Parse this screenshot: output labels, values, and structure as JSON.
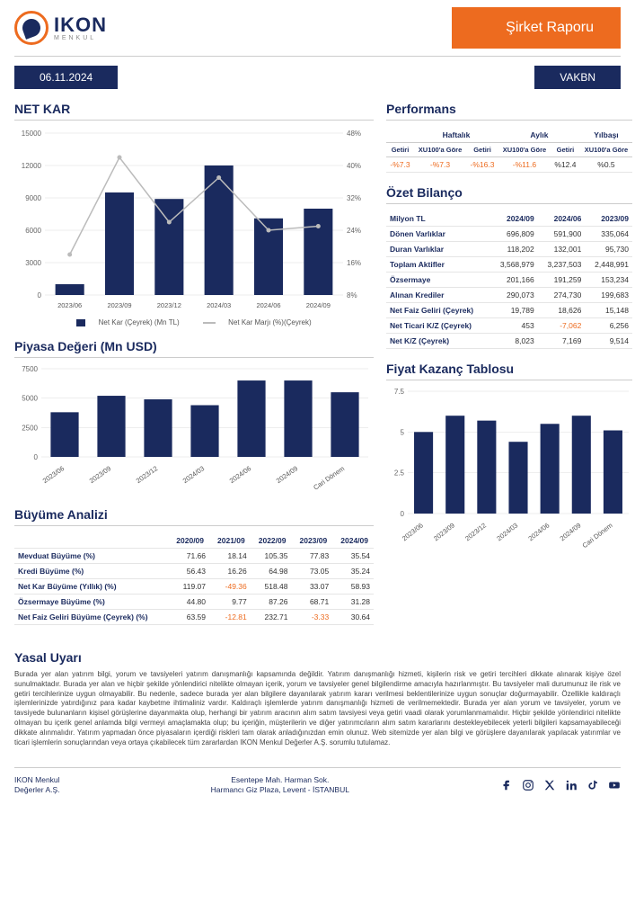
{
  "header": {
    "logo_main": "IKON",
    "logo_sub": "MENKUL",
    "banner": "Şirket Raporu"
  },
  "info": {
    "date": "06.11.2024",
    "ticker": "VAKBN"
  },
  "netkar": {
    "title": "NET KAR",
    "type": "bar+line",
    "categories": [
      "2023/06",
      "2023/09",
      "2023/12",
      "2024/03",
      "2024/06",
      "2024/09"
    ],
    "bar_values": [
      1000,
      9500,
      8900,
      12000,
      7100,
      8000
    ],
    "line_values": [
      18,
      42,
      26,
      37,
      24,
      25
    ],
    "y_left_max": 15000,
    "y_left_step": 3000,
    "y_right_max": 48,
    "y_right_min": 8,
    "y_right_step": 8,
    "bar_color": "#1a2a5e",
    "line_color": "#bbbbbb",
    "legend_bar": "Net Kar (Çeyrek) (Mn TL)",
    "legend_line": "Net Kar Marjı (%)(Çeyrek)"
  },
  "piyasa": {
    "title": "Piyasa Değeri (Mn USD)",
    "type": "bar",
    "categories": [
      "2023/06",
      "2023/09",
      "2023/12",
      "2024/03",
      "2024/06",
      "2024/09",
      "Cari Dönem"
    ],
    "values": [
      3800,
      5200,
      4900,
      4400,
      6500,
      6500,
      5500
    ],
    "ymax": 7500,
    "ystep": 2500,
    "bar_color": "#1a2a5e"
  },
  "buyume": {
    "title": "Büyüme Analizi",
    "columns": [
      "",
      "2020/09",
      "2021/09",
      "2022/09",
      "2023/09",
      "2024/09"
    ],
    "rows": [
      {
        "label": "Mevduat Büyüme (%)",
        "vals": [
          "71.66",
          "18.14",
          "105.35",
          "77.83",
          "35.54"
        ]
      },
      {
        "label": "Kredi Büyüme (%)",
        "vals": [
          "56.43",
          "16.26",
          "64.98",
          "73.05",
          "35.24"
        ]
      },
      {
        "label": "Net Kar Büyüme (Yıllık) (%)",
        "vals": [
          "119.07",
          "-49.36",
          "518.48",
          "33.07",
          "58.93"
        ]
      },
      {
        "label": "Özsermaye Büyüme (%)",
        "vals": [
          "44.80",
          "9.77",
          "87.26",
          "68.71",
          "31.28"
        ]
      },
      {
        "label": "Net Faiz Geliri Büyüme (Çeyrek) (%)",
        "vals": [
          "63.59",
          "-12.81",
          "232.71",
          "-3.33",
          "30.64"
        ]
      }
    ]
  },
  "performans": {
    "title": "Performans",
    "groups": [
      "Haftalık",
      "Aylık",
      "Yılbaşı"
    ],
    "sub_cols": [
      "Getiri",
      "XU100'a Göre"
    ],
    "row": [
      "-%7.3",
      "-%7.3",
      "-%16.3",
      "-%11.6",
      "%12.4",
      "%0.5"
    ]
  },
  "ozet": {
    "title": "Özet Bilanço",
    "columns": [
      "Milyon TL",
      "2024/09",
      "2024/06",
      "2023/09"
    ],
    "rows": [
      {
        "label": "Dönen Varlıklar",
        "vals": [
          "696,809",
          "591,900",
          "335,064"
        ]
      },
      {
        "label": "Duran Varlıklar",
        "vals": [
          "118,202",
          "132,001",
          "95,730"
        ]
      },
      {
        "label": "Toplam Aktifler",
        "vals": [
          "3,568,979",
          "3,237,503",
          "2,448,991"
        ]
      },
      {
        "label": "Özsermaye",
        "vals": [
          "201,166",
          "191,259",
          "153,234"
        ]
      },
      {
        "label": "Alınan Krediler",
        "vals": [
          "290,073",
          "274,730",
          "199,683"
        ]
      },
      {
        "label": "Net Faiz Geliri (Çeyrek)",
        "vals": [
          "19,789",
          "18,626",
          "15,148"
        ]
      },
      {
        "label": "Net Ticari K/Z (Çeyrek)",
        "vals": [
          "453",
          "-7,062",
          "6,256"
        ]
      },
      {
        "label": "Net K/Z (Çeyrek)",
        "vals": [
          "8,023",
          "7,169",
          "9,514"
        ]
      }
    ]
  },
  "fiyat": {
    "title": "Fiyat Kazanç Tablosu",
    "type": "bar",
    "categories": [
      "2023/06",
      "2023/09",
      "2023/12",
      "2024/03",
      "2024/06",
      "2024/09",
      "Cari Dönem"
    ],
    "values": [
      5.0,
      6.0,
      5.7,
      4.4,
      5.5,
      6.0,
      5.1
    ],
    "ymax": 7.5,
    "ystep": 2.5,
    "bar_color": "#1a2a5e"
  },
  "legal": {
    "title": "Yasal Uyarı",
    "text": "Burada yer alan yatırım bilgi, yorum ve tavsiyeleri yatırım danışmanlığı kapsamında değildir. Yatırım danışmanlığı hizmeti, kişilerin risk ve getiri tercihleri dikkate alınarak kişiye özel sunulmaktadır. Burada yer alan ve hiçbir şekilde yönlendirici nitelikte olmayan içerik, yorum ve tavsiyeler genel bilgilendirme amacıyla hazırlanmıştır. Bu tavsiyeler mali durumunuz ile risk ve getiri tercihlerinize uygun olmayabilir. Bu nedenle, sadece burada yer alan bilgilere dayanılarak yatırım kararı verilmesi beklentilerinize uygun sonuçlar doğurmayabilir. Özellikle kaldıraçlı işlemlerinizde yatırdığınız para kadar kaybetme ihtimaliniz vardır. Kaldıraçlı işlemlerde yatırım danışmanlığı hizmeti de verilmemektedir. Burada yer alan yorum ve tavsiyeler, yorum ve tavsiyede bulunanların kişisel görüşlerine dayanmakta olup, herhangi bir yatırım aracının alım satım tavsiyesi veya getiri vaadi olarak yorumlanmamalıdır. Hiçbir şekilde yönlendirici nitelikte olmayan bu içerik genel anlamda bilgi vermeyi amaçlamakta olup; bu içeriğin, müşterilerin ve diğer yatırımcıların alım satım kararlarını destekleyebilecek yeterli bilgileri kapsamayabileceği dikkate alınmalıdır. Yatırım yapmadan önce piyasaların içerdiği riskleri tam olarak anladığınızdan emin olunuz. Web sitemizde yer alan bilgi ve görüşlere dayanılarak yapılacak yatırımlar ve ticari işlemlerin sonuçlarından veya ortaya çıkabilecek tüm zararlardan IKON Menkul Değerler A.Ş. sorumlu tutulamaz."
  },
  "footer": {
    "left1": "IKON Menkul",
    "left2": "Değerler A.Ş.",
    "mid1": "Esentepe Mah. Harman Sok.",
    "mid2": "Harmancı Giz Plaza, Levent - İSTANBUL"
  }
}
